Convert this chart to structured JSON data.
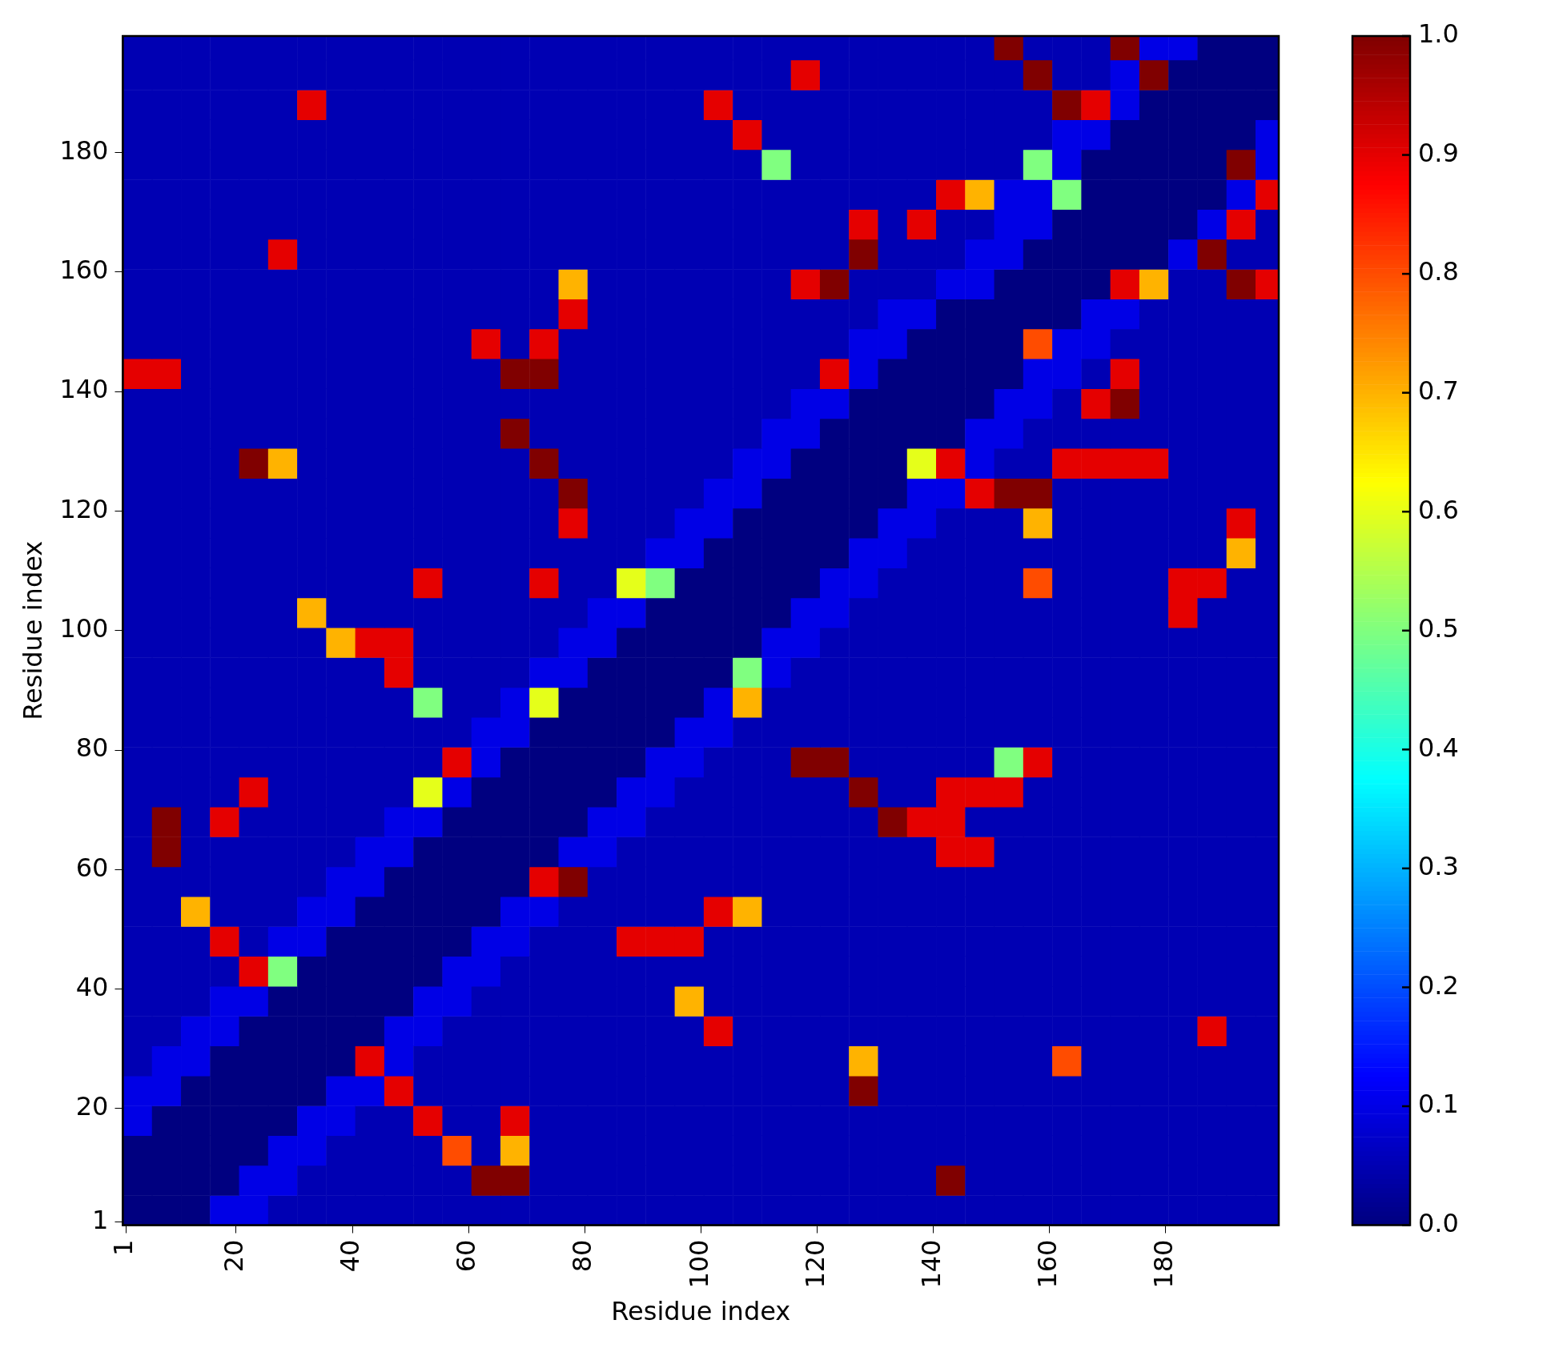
{
  "chart_data": {
    "type": "heatmap",
    "xlabel": "Residue index",
    "ylabel": "Residue index",
    "x": [
      3,
      8,
      13,
      18,
      23,
      28,
      33,
      38,
      43,
      48,
      53,
      58,
      63,
      68,
      73,
      78,
      83,
      88,
      93,
      98,
      103,
      108,
      113,
      118,
      123,
      128,
      133,
      138,
      143,
      148,
      153,
      158,
      163,
      168,
      173,
      178,
      183,
      188,
      193,
      198
    ],
    "y": [
      3,
      8,
      13,
      18,
      23,
      28,
      33,
      38,
      43,
      48,
      53,
      58,
      63,
      68,
      73,
      78,
      83,
      88,
      93,
      98,
      103,
      108,
      113,
      118,
      123,
      128,
      133,
      138,
      143,
      148,
      153,
      158,
      163,
      168,
      173,
      178,
      183,
      188,
      193,
      198
    ],
    "xlim": [
      0.5,
      199.5
    ],
    "ylim": [
      0.5,
      199.5
    ],
    "xticks": [
      1,
      20,
      40,
      60,
      80,
      100,
      120,
      140,
      160,
      180
    ],
    "yticks": [
      1,
      20,
      40,
      60,
      80,
      100,
      120,
      140,
      160,
      180
    ],
    "clim": [
      0,
      1
    ],
    "cticks": [
      {
        "value": 0,
        "label": "0.0"
      },
      {
        "value": 0.1,
        "label": "0.1"
      },
      {
        "value": 0.2,
        "label": "0.2"
      },
      {
        "value": 0.3,
        "label": "0.3"
      },
      {
        "value": 0.4,
        "label": "0.4"
      },
      {
        "value": 0.5,
        "label": "0.5"
      },
      {
        "value": 0.6,
        "label": "0.6"
      },
      {
        "value": 0.7,
        "label": "0.7"
      },
      {
        "value": 0.8,
        "label": "0.8"
      },
      {
        "value": 0.9,
        "label": "0.9"
      },
      {
        "value": 1,
        "label": "1.0"
      }
    ],
    "cells": [
      [
        0,
        0,
        0,
        0.1,
        0.1,
        0.05,
        0.05,
        0.05,
        0.05,
        0.05,
        0.05,
        0.05,
        0.05,
        0.05,
        0.05,
        0.05,
        0.05,
        0.05,
        0.05,
        0.05,
        0.05,
        0.05,
        0.05,
        0.05,
        0.05,
        0.05,
        0.05,
        0.05,
        0.05,
        0.05,
        0.05,
        0.05,
        0.05,
        0.05,
        0.05,
        0.05,
        0.05,
        0.05,
        0.05,
        0.05
      ],
      [
        0,
        0,
        0,
        0,
        0.1,
        0.1,
        0.05,
        0.05,
        0.05,
        0.05,
        0.05,
        0.05,
        1,
        1,
        0.05,
        0.05,
        0.05,
        0.05,
        0.05,
        0.05,
        0.05,
        0.05,
        0.05,
        0.05,
        0.05,
        0.05,
        0.05,
        0.05,
        1,
        0.05,
        0.05,
        0.05,
        0.05,
        0.05,
        0.05,
        0.05,
        0.05,
        0.05,
        0.05,
        0.05
      ],
      [
        0,
        0,
        0,
        0,
        0,
        0.1,
        0.1,
        0.05,
        0.05,
        0.05,
        0.05,
        0.8,
        0.05,
        0.7,
        0.05,
        0.05,
        0.05,
        0.05,
        0.05,
        0.05,
        0.05,
        0.05,
        0.05,
        0.05,
        0.05,
        0.05,
        0.05,
        0.05,
        0.05,
        0.05,
        0.05,
        0.05,
        0.05,
        0.05,
        0.05,
        0.05,
        0.05,
        0.05,
        0.05,
        0.05
      ],
      [
        0.1,
        0,
        0,
        0,
        0,
        0,
        0.1,
        0.1,
        0.05,
        0.05,
        0.9,
        0.05,
        0.05,
        0.9,
        0.05,
        0.05,
        0.05,
        0.05,
        0.05,
        0.05,
        0.05,
        0.05,
        0.05,
        0.05,
        0.05,
        0.05,
        0.05,
        0.05,
        0.05,
        0.05,
        0.05,
        0.05,
        0.05,
        0.05,
        0.05,
        0.05,
        0.05,
        0.05,
        0.05,
        0.05
      ],
      [
        0.1,
        0.1,
        0,
        0,
        0,
        0,
        0,
        0.1,
        0.1,
        0.9,
        0.05,
        0.05,
        0.05,
        0.05,
        0.05,
        0.05,
        0.05,
        0.05,
        0.05,
        0.05,
        0.05,
        0.05,
        0.05,
        0.05,
        0.05,
        1,
        0.05,
        0.05,
        0.05,
        0.05,
        0.05,
        0.05,
        0.05,
        0.05,
        0.05,
        0.05,
        0.05,
        0.05,
        0.05,
        0.05
      ],
      [
        0.05,
        0.1,
        0.1,
        0,
        0,
        0,
        0,
        0,
        0.9,
        0.1,
        0.05,
        0.05,
        0.05,
        0.05,
        0.05,
        0.05,
        0.05,
        0.05,
        0.05,
        0.05,
        0.05,
        0.05,
        0.05,
        0.05,
        0.05,
        0.7,
        0.05,
        0.05,
        0.05,
        0.05,
        0.05,
        0.05,
        0.8,
        0.05,
        0.05,
        0.05,
        0.05,
        0.05,
        0.05,
        0.05
      ],
      [
        0.05,
        0.05,
        0.1,
        0.1,
        0,
        0,
        0,
        0,
        0,
        0.1,
        0.1,
        0.05,
        0.05,
        0.05,
        0.05,
        0.05,
        0.05,
        0.05,
        0.05,
        0.05,
        0.9,
        0.05,
        0.05,
        0.05,
        0.05,
        0.05,
        0.05,
        0.05,
        0.05,
        0.05,
        0.05,
        0.05,
        0.05,
        0.05,
        0.05,
        0.05,
        0.05,
        0.9,
        0.05,
        0.05
      ],
      [
        0.05,
        0.05,
        0.05,
        0.1,
        0.1,
        0,
        0,
        0,
        0,
        0,
        0.1,
        0.1,
        0.05,
        0.05,
        0.05,
        0.05,
        0.05,
        0.05,
        0.05,
        0.7,
        0.05,
        0.05,
        0.05,
        0.05,
        0.05,
        0.05,
        0.05,
        0.05,
        0.05,
        0.05,
        0.05,
        0.05,
        0.05,
        0.05,
        0.05,
        0.05,
        0.05,
        0.05,
        0.05,
        0.05
      ],
      [
        0.05,
        0.05,
        0.05,
        0.05,
        0.9,
        0.5,
        0,
        0,
        0,
        0,
        0,
        0.1,
        0.1,
        0.05,
        0.05,
        0.05,
        0.05,
        0.05,
        0.05,
        0.05,
        0.05,
        0.05,
        0.05,
        0.05,
        0.05,
        0.05,
        0.05,
        0.05,
        0.05,
        0.05,
        0.05,
        0.05,
        0.05,
        0.05,
        0.05,
        0.05,
        0.05,
        0.05,
        0.05,
        0.05
      ],
      [
        0.05,
        0.05,
        0.05,
        0.9,
        0.05,
        0.1,
        0.1,
        0,
        0,
        0,
        0,
        0,
        0.1,
        0.1,
        0.05,
        0.05,
        0.05,
        0.9,
        0.9,
        0.9,
        0.05,
        0.05,
        0.05,
        0.05,
        0.05,
        0.05,
        0.05,
        0.05,
        0.05,
        0.05,
        0.05,
        0.05,
        0.05,
        0.05,
        0.05,
        0.05,
        0.05,
        0.05,
        0.05,
        0.05
      ],
      [
        0.05,
        0.05,
        0.7,
        0.05,
        0.05,
        0.05,
        0.1,
        0.1,
        0,
        0,
        0,
        0,
        0,
        0.1,
        0.1,
        0.05,
        0.05,
        0.05,
        0.05,
        0.05,
        0.9,
        0.7,
        0.05,
        0.05,
        0.05,
        0.05,
        0.05,
        0.05,
        0.05,
        0.05,
        0.05,
        0.05,
        0.05,
        0.05,
        0.05,
        0.05,
        0.05,
        0.05,
        0.05,
        0.05
      ],
      [
        0.05,
        0.05,
        0.05,
        0.05,
        0.05,
        0.05,
        0.05,
        0.1,
        0.1,
        0,
        0,
        0,
        0,
        0,
        0.9,
        1,
        0.05,
        0.05,
        0.05,
        0.05,
        0.05,
        0.05,
        0.05,
        0.05,
        0.05,
        0.05,
        0.05,
        0.05,
        0.05,
        0.05,
        0.05,
        0.05,
        0.05,
        0.05,
        0.05,
        0.05,
        0.05,
        0.05,
        0.05,
        0.05
      ],
      [
        0.05,
        1,
        0.05,
        0.05,
        0.05,
        0.05,
        0.05,
        0.05,
        0.1,
        0.1,
        0,
        0,
        0,
        0,
        0,
        0.1,
        0.1,
        0.05,
        0.05,
        0.05,
        0.05,
        0.05,
        0.05,
        0.05,
        0.05,
        0.05,
        0.05,
        0.05,
        0.9,
        0.9,
        0.05,
        0.05,
        0.05,
        0.05,
        0.05,
        0.05,
        0.05,
        0.05,
        0.05,
        0.05
      ],
      [
        0.05,
        1,
        0.05,
        0.9,
        0.05,
        0.05,
        0.05,
        0.05,
        0.05,
        0.1,
        0.1,
        0,
        0,
        0,
        0,
        0,
        0.1,
        0.1,
        0.05,
        0.05,
        0.05,
        0.05,
        0.05,
        0.05,
        0.05,
        0.05,
        1,
        0.9,
        0.9,
        0.05,
        0.05,
        0.05,
        0.05,
        0.05,
        0.05,
        0.05,
        0.05,
        0.05,
        0.05,
        0.05
      ],
      [
        0.05,
        0.05,
        0.05,
        0.05,
        0.9,
        0.05,
        0.05,
        0.05,
        0.05,
        0.05,
        0.6,
        0.1,
        0,
        0,
        0,
        0,
        0,
        0.1,
        0.1,
        0.05,
        0.05,
        0.05,
        0.05,
        0.05,
        0.05,
        1,
        0.05,
        0.05,
        0.9,
        0.9,
        0.9,
        0.05,
        0.05,
        0.05,
        0.05,
        0.05,
        0.05,
        0.05,
        0.05,
        0.05
      ],
      [
        0.05,
        0.05,
        0.05,
        0.05,
        0.05,
        0.05,
        0.05,
        0.05,
        0.05,
        0.05,
        0.05,
        0.9,
        0.1,
        0,
        0,
        0,
        0,
        0,
        0.1,
        0.1,
        0.05,
        0.05,
        0.05,
        1,
        1,
        0.05,
        0.05,
        0.05,
        0.05,
        0.05,
        0.5,
        0.9,
        0.05,
        0.05,
        0.05,
        0.05,
        0.05,
        0.05,
        0.05,
        0.05
      ],
      [
        0.05,
        0.05,
        0.05,
        0.05,
        0.05,
        0.05,
        0.05,
        0.05,
        0.05,
        0.05,
        0.05,
        0.05,
        0.1,
        0.1,
        0,
        0,
        0,
        0,
        0,
        0.1,
        0.1,
        0.05,
        0.05,
        0.05,
        0.05,
        0.05,
        0.05,
        0.05,
        0.05,
        0.05,
        0.05,
        0.05,
        0.05,
        0.05,
        0.05,
        0.05,
        0.05,
        0.05,
        0.05,
        0.05
      ],
      [
        0.05,
        0.05,
        0.05,
        0.05,
        0.05,
        0.05,
        0.05,
        0.05,
        0.05,
        0.05,
        0.5,
        0.05,
        0.05,
        0.1,
        0.6,
        0,
        0,
        0,
        0,
        0,
        0.1,
        0.7,
        0.05,
        0.05,
        0.05,
        0.05,
        0.05,
        0.05,
        0.05,
        0.05,
        0.05,
        0.05,
        0.05,
        0.05,
        0.05,
        0.05,
        0.05,
        0.05,
        0.05,
        0.05
      ],
      [
        0.05,
        0.05,
        0.05,
        0.05,
        0.05,
        0.05,
        0.05,
        0.05,
        0.05,
        0.9,
        0.05,
        0.05,
        0.05,
        0.05,
        0.1,
        0.1,
        0,
        0,
        0,
        0,
        0,
        0.5,
        0.1,
        0.05,
        0.05,
        0.05,
        0.05,
        0.05,
        0.05,
        0.05,
        0.05,
        0.05,
        0.05,
        0.05,
        0.05,
        0.05,
        0.05,
        0.05,
        0.05,
        0.05
      ],
      [
        0.05,
        0.05,
        0.05,
        0.05,
        0.05,
        0.05,
        0.05,
        0.7,
        0.9,
        0.9,
        0.05,
        0.05,
        0.05,
        0.05,
        0.05,
        0.1,
        0.1,
        0,
        0,
        0,
        0,
        0,
        0.1,
        0.1,
        0.05,
        0.05,
        0.05,
        0.05,
        0.05,
        0.05,
        0.05,
        0.05,
        0.05,
        0.05,
        0.05,
        0.05,
        0.05,
        0.05,
        0.05,
        0.05
      ],
      [
        0.05,
        0.05,
        0.05,
        0.05,
        0.05,
        0.05,
        0.7,
        0.05,
        0.05,
        0.05,
        0.05,
        0.05,
        0.05,
        0.05,
        0.05,
        0.05,
        0.1,
        0.1,
        0,
        0,
        0,
        0,
        0,
        0.1,
        0.1,
        0.05,
        0.05,
        0.05,
        0.05,
        0.05,
        0.05,
        0.05,
        0.05,
        0.05,
        0.05,
        0.05,
        0.9,
        0.05,
        0.05,
        0.05
      ],
      [
        0.05,
        0.05,
        0.05,
        0.05,
        0.05,
        0.05,
        0.05,
        0.05,
        0.05,
        0.05,
        0.9,
        0.05,
        0.05,
        0.05,
        0.9,
        0.05,
        0.05,
        0.6,
        0.5,
        0,
        0,
        0,
        0,
        0,
        0.1,
        0.1,
        0.05,
        0.05,
        0.05,
        0.05,
        0.05,
        0.8,
        0.05,
        0.05,
        0.05,
        0.05,
        0.9,
        0.9,
        0.05,
        0.05
      ],
      [
        0.05,
        0.05,
        0.05,
        0.05,
        0.05,
        0.05,
        0.05,
        0.05,
        0.05,
        0.05,
        0.05,
        0.05,
        0.05,
        0.05,
        0.05,
        0.05,
        0.05,
        0.05,
        0.1,
        0.1,
        0,
        0,
        0,
        0,
        0,
        0.1,
        0.1,
        0.05,
        0.05,
        0.05,
        0.05,
        0.05,
        0.05,
        0.05,
        0.05,
        0.05,
        0.05,
        0.05,
        0.7,
        0.05
      ],
      [
        0.05,
        0.05,
        0.05,
        0.05,
        0.05,
        0.05,
        0.05,
        0.05,
        0.05,
        0.05,
        0.05,
        0.05,
        0.05,
        0.05,
        0.05,
        0.9,
        0.05,
        0.05,
        0.05,
        0.1,
        0.1,
        0,
        0,
        0,
        0,
        0,
        0.1,
        0.1,
        0.05,
        0.05,
        0.05,
        0.7,
        0.05,
        0.05,
        0.05,
        0.05,
        0.05,
        0.05,
        0.9,
        0.05
      ],
      [
        0.05,
        0.05,
        0.05,
        0.05,
        0.05,
        0.05,
        0.05,
        0.05,
        0.05,
        0.05,
        0.05,
        0.05,
        0.05,
        0.05,
        0.05,
        1,
        0.05,
        0.05,
        0.05,
        0.05,
        0.1,
        0.1,
        0,
        0,
        0,
        0,
        0,
        0.1,
        0.1,
        0.9,
        1,
        1,
        0.05,
        0.05,
        0.05,
        0.05,
        0.05,
        0.05,
        0.05,
        0.05
      ],
      [
        0.05,
        0.05,
        0.05,
        0.05,
        1,
        0.7,
        0.05,
        0.05,
        0.05,
        0.05,
        0.05,
        0.05,
        0.05,
        0.05,
        1,
        0.05,
        0.05,
        0.05,
        0.05,
        0.05,
        0.05,
        0.1,
        0.1,
        0,
        0,
        0,
        0,
        0.6,
        0.9,
        0.1,
        0.05,
        0.05,
        0.9,
        0.9,
        0.9,
        0.9,
        0.05,
        0.05,
        0.05,
        0.05
      ],
      [
        0.05,
        0.05,
        0.05,
        0.05,
        0.05,
        0.05,
        0.05,
        0.05,
        0.05,
        0.05,
        0.05,
        0.05,
        0.05,
        1,
        0.05,
        0.05,
        0.05,
        0.05,
        0.05,
        0.05,
        0.05,
        0.05,
        0.1,
        0.1,
        0,
        0,
        0,
        0,
        0,
        0.1,
        0.1,
        0.05,
        0.05,
        0.05,
        0.05,
        0.05,
        0.05,
        0.05,
        0.05,
        0.05
      ],
      [
        0.05,
        0.05,
        0.05,
        0.05,
        0.05,
        0.05,
        0.05,
        0.05,
        0.05,
        0.05,
        0.05,
        0.05,
        0.05,
        0.05,
        0.05,
        0.05,
        0.05,
        0.05,
        0.05,
        0.05,
        0.05,
        0.05,
        0.05,
        0.1,
        0.1,
        0,
        0,
        0,
        0,
        0,
        0.1,
        0.1,
        0.05,
        0.9,
        1,
        0.05,
        0.05,
        0.05,
        0.05,
        0.05
      ],
      [
        0.9,
        0.9,
        0.05,
        0.05,
        0.05,
        0.05,
        0.05,
        0.05,
        0.05,
        0.05,
        0.05,
        0.05,
        0.05,
        1,
        1,
        0.05,
        0.05,
        0.05,
        0.05,
        0.05,
        0.05,
        0.05,
        0.05,
        0.05,
        0.9,
        0.1,
        0,
        0,
        0,
        0,
        0,
        0.1,
        0.1,
        0.05,
        0.9,
        0.05,
        0.05,
        0.05,
        0.05,
        0.05
      ],
      [
        0.05,
        0.05,
        0.05,
        0.05,
        0.05,
        0.05,
        0.05,
        0.05,
        0.05,
        0.05,
        0.05,
        0.05,
        0.9,
        0.05,
        0.9,
        0.05,
        0.05,
        0.05,
        0.05,
        0.05,
        0.05,
        0.05,
        0.05,
        0.05,
        0.05,
        0.1,
        0.1,
        0,
        0,
        0,
        0,
        0.8,
        0.1,
        0.1,
        0.05,
        0.05,
        0.05,
        0.05,
        0.05,
        0.05
      ],
      [
        0.05,
        0.05,
        0.05,
        0.05,
        0.05,
        0.05,
        0.05,
        0.05,
        0.05,
        0.05,
        0.05,
        0.05,
        0.05,
        0.05,
        0.05,
        0.9,
        0.05,
        0.05,
        0.05,
        0.05,
        0.05,
        0.05,
        0.05,
        0.05,
        0.05,
        0.05,
        0.1,
        0.1,
        0,
        0,
        0,
        0,
        0,
        0.1,
        0.1,
        0.05,
        0.05,
        0.05,
        0.05,
        0.05
      ],
      [
        0.05,
        0.05,
        0.05,
        0.05,
        0.05,
        0.05,
        0.05,
        0.05,
        0.05,
        0.05,
        0.05,
        0.05,
        0.05,
        0.05,
        0.05,
        0.7,
        0.05,
        0.05,
        0.05,
        0.05,
        0.05,
        0.05,
        0.05,
        0.9,
        1,
        0.05,
        0.05,
        0.05,
        0.1,
        0.1,
        0,
        0,
        0,
        0,
        0.9,
        0.7,
        0.05,
        0.05,
        1,
        0.9
      ],
      [
        0.05,
        0.05,
        0.05,
        0.05,
        0.05,
        0.9,
        0.05,
        0.05,
        0.05,
        0.05,
        0.05,
        0.05,
        0.05,
        0.05,
        0.05,
        0.05,
        0.05,
        0.05,
        0.05,
        0.05,
        0.05,
        0.05,
        0.05,
        0.05,
        0.05,
        1,
        0.05,
        0.05,
        0.05,
        0.1,
        0.1,
        0,
        0,
        0,
        0,
        0,
        0.1,
        1,
        0.05,
        0.05
      ],
      [
        0.05,
        0.05,
        0.05,
        0.05,
        0.05,
        0.05,
        0.05,
        0.05,
        0.05,
        0.05,
        0.05,
        0.05,
        0.05,
        0.05,
        0.05,
        0.05,
        0.05,
        0.05,
        0.05,
        0.05,
        0.05,
        0.05,
        0.05,
        0.05,
        0.05,
        0.9,
        0.05,
        0.9,
        0.05,
        0.05,
        0.1,
        0.1,
        0,
        0,
        0,
        0,
        0,
        0.1,
        0.9,
        0.05
      ],
      [
        0.05,
        0.05,
        0.05,
        0.05,
        0.05,
        0.05,
        0.05,
        0.05,
        0.05,
        0.05,
        0.05,
        0.05,
        0.05,
        0.05,
        0.05,
        0.05,
        0.05,
        0.05,
        0.05,
        0.05,
        0.05,
        0.05,
        0.05,
        0.05,
        0.05,
        0.05,
        0.05,
        0.05,
        0.9,
        0.7,
        0.1,
        0.1,
        0.5,
        0,
        0,
        0,
        0,
        0,
        0.1,
        0.9
      ],
      [
        0.05,
        0.05,
        0.05,
        0.05,
        0.05,
        0.05,
        0.05,
        0.05,
        0.05,
        0.05,
        0.05,
        0.05,
        0.05,
        0.05,
        0.05,
        0.05,
        0.05,
        0.05,
        0.05,
        0.05,
        0.05,
        0.05,
        0.5,
        0.05,
        0.05,
        0.05,
        0.05,
        0.05,
        0.05,
        0.05,
        0.05,
        0.5,
        0.1,
        0,
        0,
        0,
        0,
        0,
        1,
        0.1
      ],
      [
        0.05,
        0.05,
        0.05,
        0.05,
        0.05,
        0.05,
        0.05,
        0.05,
        0.05,
        0.05,
        0.05,
        0.05,
        0.05,
        0.05,
        0.05,
        0.05,
        0.05,
        0.05,
        0.05,
        0.05,
        0.05,
        0.9,
        0.05,
        0.05,
        0.05,
        0.05,
        0.05,
        0.05,
        0.05,
        0.05,
        0.05,
        0.05,
        0.1,
        0.1,
        0,
        0,
        0,
        0,
        0,
        0.1
      ],
      [
        0.05,
        0.05,
        0.05,
        0.05,
        0.05,
        0.05,
        0.9,
        0.05,
        0.05,
        0.05,
        0.05,
        0.05,
        0.05,
        0.05,
        0.05,
        0.05,
        0.05,
        0.05,
        0.05,
        0.05,
        0.9,
        0.05,
        0.05,
        0.05,
        0.05,
        0.05,
        0.05,
        0.05,
        0.05,
        0.05,
        0.05,
        0.05,
        1,
        0.9,
        0.1,
        0,
        0,
        0,
        0,
        0
      ],
      [
        0.05,
        0.05,
        0.05,
        0.05,
        0.05,
        0.05,
        0.05,
        0.05,
        0.05,
        0.05,
        0.05,
        0.05,
        0.05,
        0.05,
        0.05,
        0.05,
        0.05,
        0.05,
        0.05,
        0.05,
        0.05,
        0.05,
        0.05,
        0.9,
        0.05,
        0.05,
        0.05,
        0.05,
        0.05,
        0.05,
        0.05,
        1,
        0.05,
        0.05,
        0.1,
        1,
        0,
        0,
        0,
        0
      ],
      [
        0.05,
        0.05,
        0.05,
        0.05,
        0.05,
        0.05,
        0.05,
        0.05,
        0.05,
        0.05,
        0.05,
        0.05,
        0.05,
        0.05,
        0.05,
        0.05,
        0.05,
        0.05,
        0.05,
        0.05,
        0.05,
        0.05,
        0.05,
        0.05,
        0.05,
        0.05,
        0.05,
        0.05,
        0.05,
        0.05,
        1,
        0.05,
        0.05,
        0.05,
        1,
        0.1,
        0.1,
        0,
        0,
        0
      ]
    ]
  }
}
